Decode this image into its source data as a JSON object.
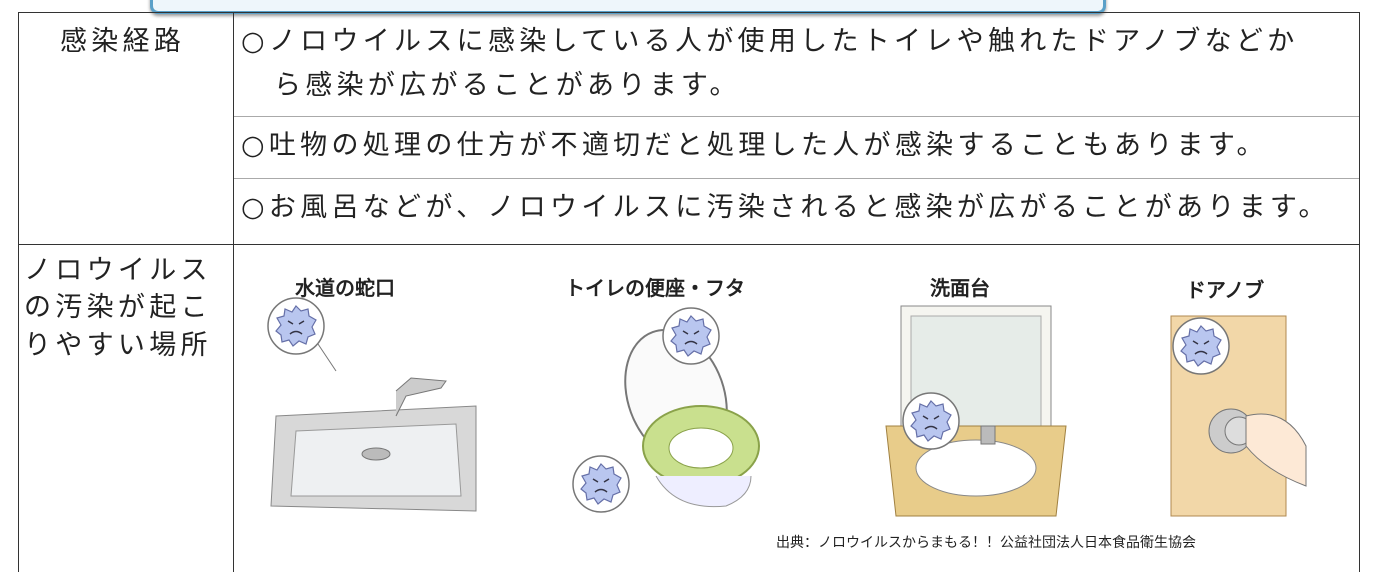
{
  "table": {
    "rows": [
      {
        "header": "感染経路",
        "items": [
          {
            "lines": [
              "○ノロウイルスに感染している人が使用したトイレや触れたドアノブなどか",
              "ら感染が広がることがあります。"
            ]
          },
          {
            "lines": [
              "○吐物の処理の仕方が不適切だと処理した人が感染することもあります。"
            ]
          },
          {
            "lines": [
              "○お風呂などが、ノロウイルスに汚染されると感染が広がることがあります。"
            ]
          }
        ]
      },
      {
        "header_lines": [
          "ノロウイルス",
          "の汚染が起こ",
          "りやすい場所"
        ],
        "places": [
          "水道の蛇口",
          "トイレの便座・フタ",
          "洗面台",
          "ドアノブ"
        ],
        "source": "出典：ノロウイルスからまもる！！公益社団法人日本食品衛生協会"
      }
    ]
  }
}
